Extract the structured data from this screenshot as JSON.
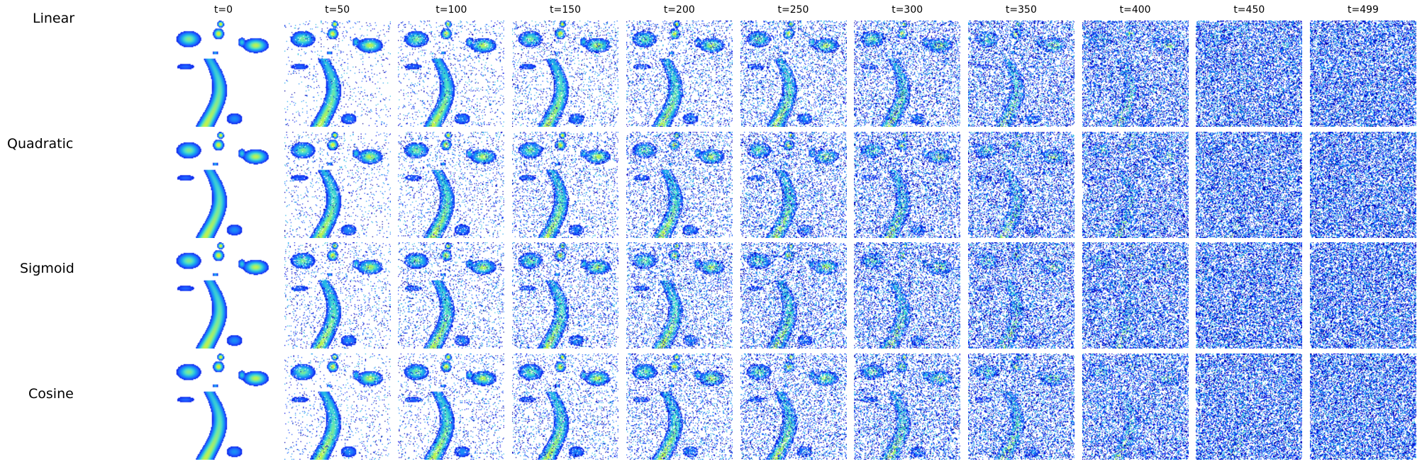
{
  "figure": {
    "timesteps": [
      "t=0",
      "t=50",
      "t=100",
      "t=150",
      "t=200",
      "t=250",
      "t=300",
      "t=350",
      "t=400",
      "t=450",
      "t=499"
    ],
    "schedules": [
      "Linear",
      "Quadratic",
      "Sigmoid",
      "Cosine"
    ],
    "colormap": [
      "#00008b",
      "#0000e0",
      "#1f5fff",
      "#18a6f0",
      "#4fe0c8",
      "#b6f25a",
      "#f2f217"
    ],
    "background": "#ffffff"
  }
}
